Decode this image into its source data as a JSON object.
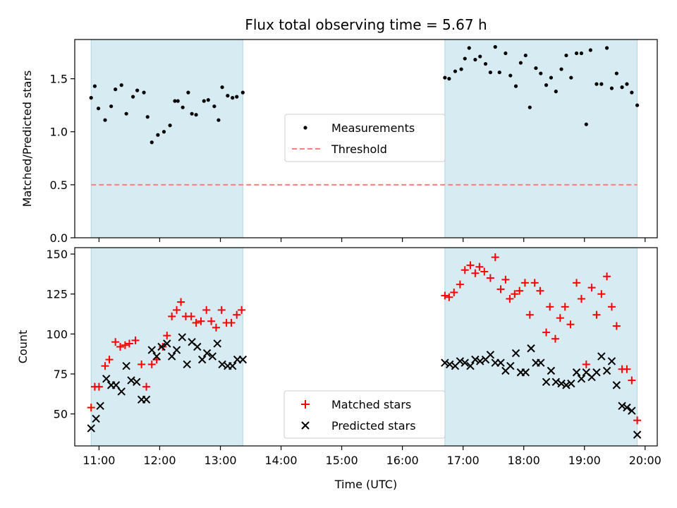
{
  "chart_data": [
    {
      "type": "scatter",
      "title": "Flux total observing time = 5.67 h",
      "xlabel": "",
      "ylabel": "Matched/Predicted stars",
      "x_axis_range_hours": [
        10.6,
        20.2
      ],
      "ylim": [
        0.0,
        1.87
      ],
      "yticks": [
        0.0,
        0.5,
        1.0,
        1.5
      ],
      "ytick_labels": [
        "0.0",
        "0.5",
        "1.0",
        "1.5"
      ],
      "grid": false,
      "legend_position": "center",
      "observing_windows": [
        [
          10.87,
          13.37
        ],
        [
          16.7,
          19.87
        ]
      ],
      "threshold": {
        "name": "Threshold",
        "value": 0.5,
        "style": "dashed",
        "color": "#ff7f7f"
      },
      "series": [
        {
          "name": "Measurements",
          "marker": "dot",
          "color": "#000000",
          "points": [
            [
              10.87,
              1.32
            ],
            [
              10.93,
              1.43
            ],
            [
              10.99,
              1.22
            ],
            [
              11.1,
              1.11
            ],
            [
              11.2,
              1.24
            ],
            [
              11.27,
              1.4
            ],
            [
              11.37,
              1.44
            ],
            [
              11.45,
              1.17
            ],
            [
              11.56,
              1.33
            ],
            [
              11.63,
              1.39
            ],
            [
              11.74,
              1.37
            ],
            [
              11.8,
              1.14
            ],
            [
              11.87,
              0.9
            ],
            [
              11.97,
              0.97
            ],
            [
              12.07,
              1.0
            ],
            [
              12.17,
              1.06
            ],
            [
              12.25,
              1.29
            ],
            [
              12.3,
              1.29
            ],
            [
              12.38,
              1.23
            ],
            [
              12.47,
              1.37
            ],
            [
              12.53,
              1.17
            ],
            [
              12.6,
              1.16
            ],
            [
              12.73,
              1.29
            ],
            [
              12.8,
              1.3
            ],
            [
              12.9,
              1.24
            ],
            [
              12.97,
              1.11
            ],
            [
              13.03,
              1.42
            ],
            [
              13.12,
              1.34
            ],
            [
              13.2,
              1.32
            ],
            [
              13.27,
              1.33
            ],
            [
              13.37,
              1.37
            ],
            [
              16.7,
              1.51
            ],
            [
              16.77,
              1.5
            ],
            [
              16.87,
              1.57
            ],
            [
              16.97,
              1.59
            ],
            [
              17.03,
              1.69
            ],
            [
              17.1,
              1.79
            ],
            [
              17.2,
              1.68
            ],
            [
              17.28,
              1.71
            ],
            [
              17.37,
              1.64
            ],
            [
              17.45,
              1.56
            ],
            [
              17.53,
              1.8
            ],
            [
              17.6,
              1.56
            ],
            [
              17.7,
              1.74
            ],
            [
              17.78,
              1.53
            ],
            [
              17.87,
              1.43
            ],
            [
              17.95,
              1.65
            ],
            [
              18.03,
              1.72
            ],
            [
              18.1,
              1.23
            ],
            [
              18.2,
              1.6
            ],
            [
              18.28,
              1.55
            ],
            [
              18.37,
              1.44
            ],
            [
              18.45,
              1.51
            ],
            [
              18.53,
              1.38
            ],
            [
              18.62,
              1.59
            ],
            [
              18.7,
              1.72
            ],
            [
              18.78,
              1.51
            ],
            [
              18.87,
              1.74
            ],
            [
              18.95,
              1.74
            ],
            [
              19.03,
              1.07
            ],
            [
              19.1,
              1.77
            ],
            [
              19.2,
              1.45
            ],
            [
              19.28,
              1.45
            ],
            [
              19.37,
              1.79
            ],
            [
              19.45,
              1.41
            ],
            [
              19.53,
              1.55
            ],
            [
              19.62,
              1.42
            ],
            [
              19.7,
              1.45
            ],
            [
              19.78,
              1.37
            ],
            [
              19.87,
              1.25
            ]
          ]
        }
      ]
    },
    {
      "type": "scatter",
      "title": "",
      "xlabel": "Time (UTC)",
      "ylabel": "Count",
      "x_axis_range_hours": [
        10.6,
        20.2
      ],
      "xticks": [
        11,
        12,
        13,
        14,
        15,
        16,
        17,
        18,
        19,
        20
      ],
      "xtick_labels": [
        "11:00",
        "12:00",
        "13:00",
        "14:00",
        "15:00",
        "16:00",
        "17:00",
        "18:00",
        "19:00",
        "20:00"
      ],
      "ylim": [
        30,
        154
      ],
      "yticks": [
        50,
        75,
        100,
        125,
        150
      ],
      "ytick_labels": [
        "50",
        "75",
        "100",
        "125",
        "150"
      ],
      "grid": false,
      "legend_position": "lower center",
      "observing_windows": [
        [
          10.87,
          13.37
        ],
        [
          16.7,
          19.87
        ]
      ],
      "series": [
        {
          "name": "Matched stars",
          "marker": "plus",
          "color": "#ff0000",
          "points": [
            [
              10.87,
              54
            ],
            [
              10.93,
              67
            ],
            [
              11.0,
              67
            ],
            [
              11.1,
              80
            ],
            [
              11.17,
              84
            ],
            [
              11.27,
              95
            ],
            [
              11.35,
              92
            ],
            [
              11.43,
              93
            ],
            [
              11.5,
              94
            ],
            [
              11.6,
              96
            ],
            [
              11.7,
              81
            ],
            [
              11.78,
              67
            ],
            [
              11.87,
              81
            ],
            [
              11.95,
              84
            ],
            [
              12.05,
              92
            ],
            [
              12.12,
              99
            ],
            [
              12.2,
              111
            ],
            [
              12.28,
              115
            ],
            [
              12.35,
              120
            ],
            [
              12.43,
              111
            ],
            [
              12.52,
              111
            ],
            [
              12.6,
              107
            ],
            [
              12.68,
              108
            ],
            [
              12.77,
              115
            ],
            [
              12.85,
              108
            ],
            [
              12.93,
              104
            ],
            [
              13.02,
              115
            ],
            [
              13.1,
              107
            ],
            [
              13.18,
              107
            ],
            [
              13.27,
              112
            ],
            [
              13.35,
              115
            ],
            [
              16.7,
              124
            ],
            [
              16.77,
              123
            ],
            [
              16.85,
              126
            ],
            [
              16.95,
              131
            ],
            [
              17.03,
              140
            ],
            [
              17.12,
              143
            ],
            [
              17.2,
              138
            ],
            [
              17.27,
              142
            ],
            [
              17.35,
              139
            ],
            [
              17.45,
              135
            ],
            [
              17.53,
              148
            ],
            [
              17.62,
              128
            ],
            [
              17.7,
              134
            ],
            [
              17.77,
              122
            ],
            [
              17.85,
              125
            ],
            [
              17.93,
              127
            ],
            [
              18.02,
              132
            ],
            [
              18.1,
              112
            ],
            [
              18.18,
              132
            ],
            [
              18.27,
              127
            ],
            [
              18.37,
              101
            ],
            [
              18.43,
              117
            ],
            [
              18.52,
              97
            ],
            [
              18.6,
              110
            ],
            [
              18.68,
              117
            ],
            [
              18.77,
              106
            ],
            [
              18.87,
              132
            ],
            [
              18.95,
              122
            ],
            [
              19.03,
              81
            ],
            [
              19.12,
              129
            ],
            [
              19.2,
              112
            ],
            [
              19.28,
              125
            ],
            [
              19.37,
              136
            ],
            [
              19.45,
              117
            ],
            [
              19.53,
              105
            ],
            [
              19.62,
              78
            ],
            [
              19.7,
              78
            ],
            [
              19.78,
              71
            ],
            [
              19.87,
              46
            ]
          ]
        },
        {
          "name": "Predicted stars",
          "marker": "x",
          "color": "#000000",
          "points": [
            [
              10.87,
              41
            ],
            [
              10.95,
              47
            ],
            [
              11.02,
              55
            ],
            [
              11.12,
              72
            ],
            [
              11.2,
              68
            ],
            [
              11.28,
              68
            ],
            [
              11.37,
              64
            ],
            [
              11.45,
              80
            ],
            [
              11.53,
              71
            ],
            [
              11.62,
              70
            ],
            [
              11.7,
              59
            ],
            [
              11.78,
              59
            ],
            [
              11.87,
              90
            ],
            [
              11.95,
              86
            ],
            [
              12.03,
              92
            ],
            [
              12.12,
              94
            ],
            [
              12.2,
              86
            ],
            [
              12.28,
              90
            ],
            [
              12.37,
              98
            ],
            [
              12.45,
              81
            ],
            [
              12.53,
              95
            ],
            [
              12.62,
              92
            ],
            [
              12.7,
              84
            ],
            [
              12.78,
              88
            ],
            [
              12.87,
              86
            ],
            [
              12.95,
              94
            ],
            [
              13.03,
              81
            ],
            [
              13.12,
              80
            ],
            [
              13.2,
              80
            ],
            [
              13.28,
              84
            ],
            [
              13.37,
              84
            ],
            [
              16.7,
              82
            ],
            [
              16.78,
              81
            ],
            [
              16.87,
              80
            ],
            [
              16.95,
              83
            ],
            [
              17.03,
              82
            ],
            [
              17.12,
              80
            ],
            [
              17.2,
              84
            ],
            [
              17.28,
              83
            ],
            [
              17.37,
              84
            ],
            [
              17.45,
              87
            ],
            [
              17.53,
              82
            ],
            [
              17.62,
              82
            ],
            [
              17.7,
              77
            ],
            [
              17.78,
              80
            ],
            [
              17.87,
              88
            ],
            [
              17.95,
              76
            ],
            [
              18.03,
              76
            ],
            [
              18.12,
              91
            ],
            [
              18.2,
              82
            ],
            [
              18.28,
              82
            ],
            [
              18.37,
              70
            ],
            [
              18.45,
              77
            ],
            [
              18.53,
              70
            ],
            [
              18.62,
              69
            ],
            [
              18.7,
              68
            ],
            [
              18.78,
              69
            ],
            [
              18.87,
              76
            ],
            [
              18.95,
              72
            ],
            [
              19.03,
              76
            ],
            [
              19.12,
              73
            ],
            [
              19.2,
              76
            ],
            [
              19.28,
              86
            ],
            [
              19.37,
              77
            ],
            [
              19.45,
              83
            ],
            [
              19.53,
              68
            ],
            [
              19.62,
              55
            ],
            [
              19.7,
              54
            ],
            [
              19.78,
              52
            ],
            [
              19.87,
              37
            ]
          ]
        }
      ]
    }
  ],
  "colors": {
    "window_fill": "#add8e6",
    "window_alpha": 0.5,
    "axes": "#000000"
  }
}
